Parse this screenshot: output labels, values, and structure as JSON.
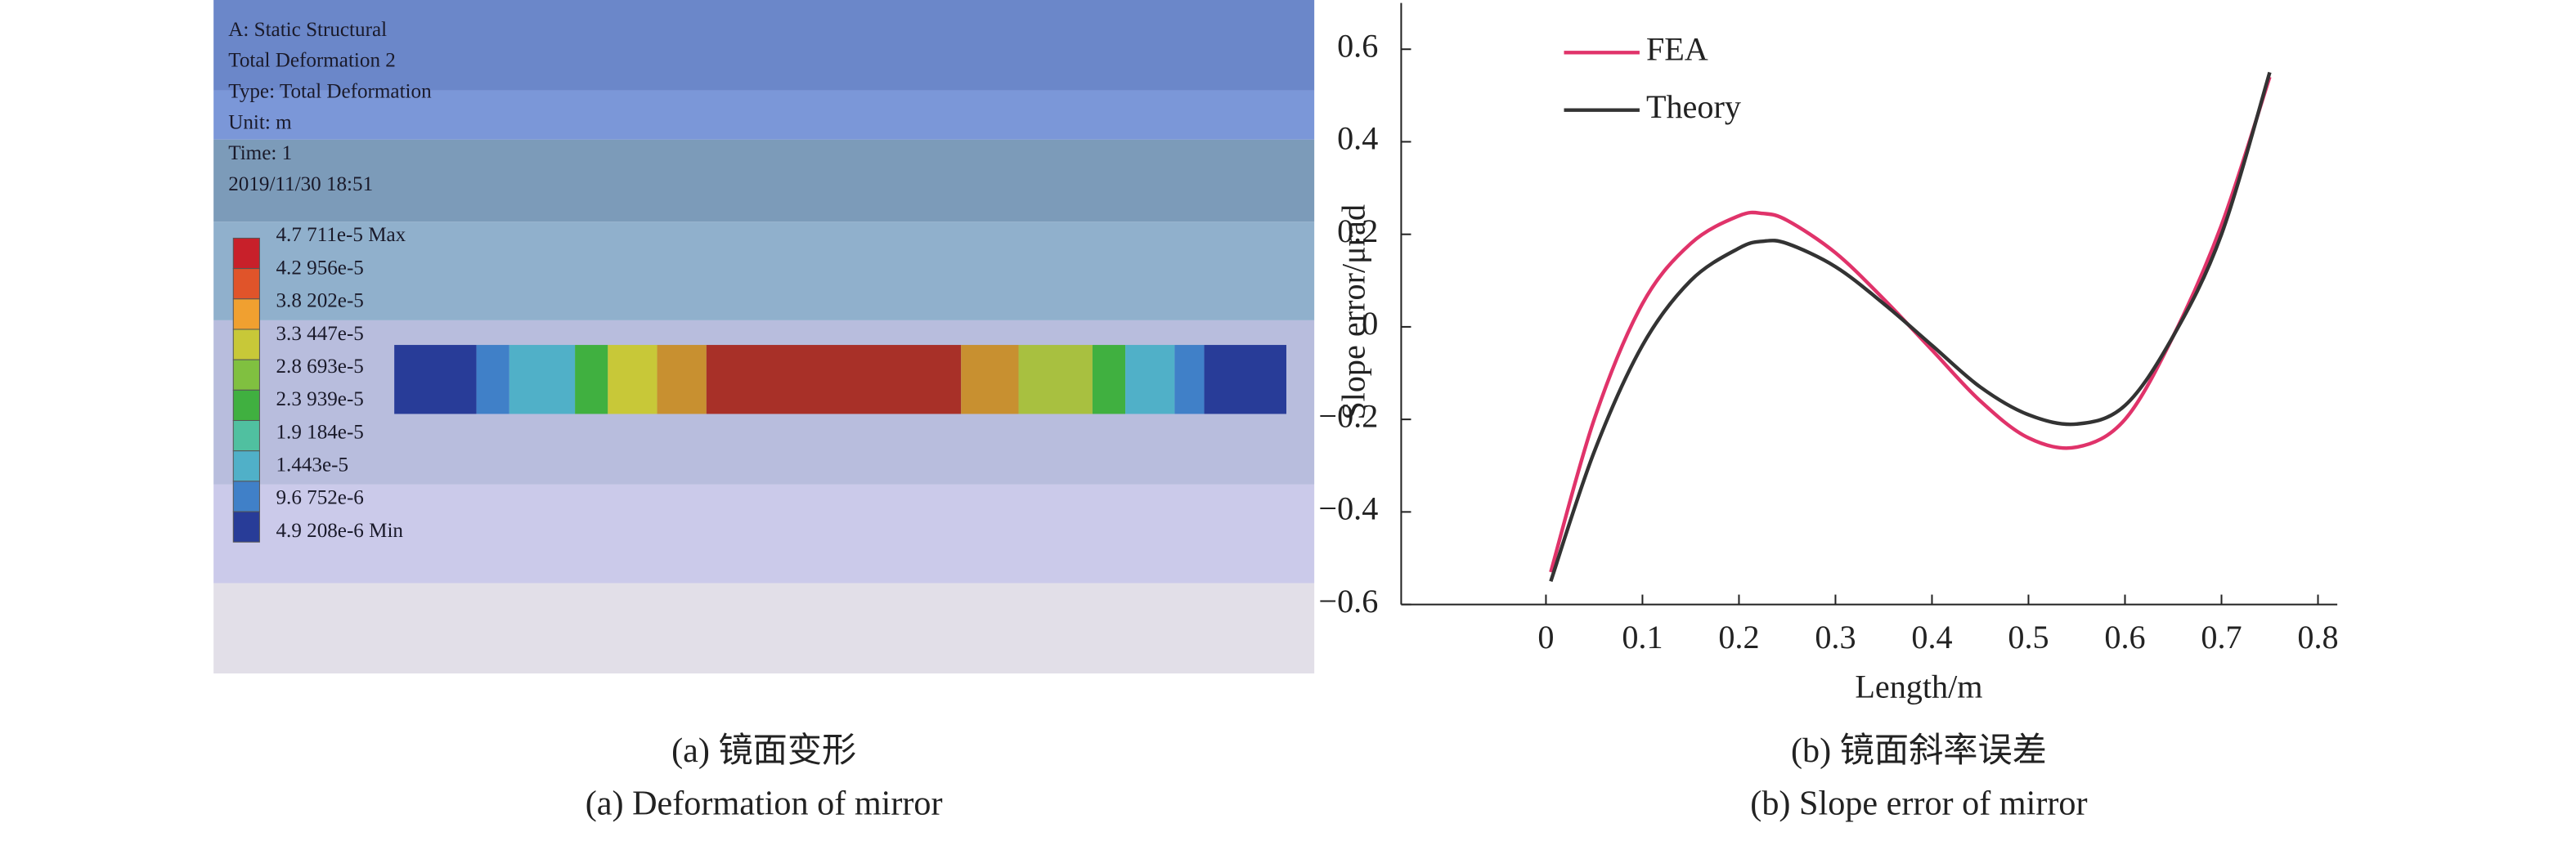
{
  "panel_a": {
    "header": [
      "A: Static Structural",
      "Total Deformation 2",
      "Type: Total Deformation",
      "Unit: m",
      "Time: 1",
      "2019/11/30 18:51"
    ],
    "legend_labels": [
      "4.7 711e-5 Max",
      "4.2 956e-5",
      "3.8 202e-5",
      "3.3 447e-5",
      "2.8 693e-5",
      "2.3 939e-5",
      "1.9 184e-5",
      "1.443e-5",
      "9.6 752e-6",
      "4.9 208e-6 Min"
    ],
    "legend_colors": [
      "#c8202a",
      "#e0542a",
      "#f0a030",
      "#c8c838",
      "#80c040",
      "#40b040",
      "#50c0a0",
      "#50b0c8",
      "#4080c8",
      "#283c98"
    ]
  },
  "chart_data": {
    "type": "line",
    "xlabel": "Length/m",
    "ylabel": "Slope error/μrad",
    "x": [
      0.005,
      0.05,
      0.1,
      0.15,
      0.2,
      0.225,
      0.25,
      0.3,
      0.35,
      0.4,
      0.45,
      0.5,
      0.55,
      0.6,
      0.65,
      0.7,
      0.75
    ],
    "series": [
      {
        "name": "FEA",
        "color": "#e0336a",
        "values": [
          -0.53,
          -0.2,
          0.05,
          0.18,
          0.24,
          0.245,
          0.23,
          0.16,
          0.06,
          -0.05,
          -0.16,
          -0.24,
          -0.26,
          -0.2,
          -0.02,
          0.22,
          0.54
        ]
      },
      {
        "name": "Theory",
        "color": "#333333",
        "values": [
          -0.55,
          -0.27,
          -0.04,
          0.1,
          0.17,
          0.185,
          0.18,
          0.13,
          0.05,
          -0.04,
          -0.13,
          -0.19,
          -0.21,
          -0.17,
          -0.02,
          0.2,
          0.55
        ]
      }
    ],
    "xlim": [
      -0.15,
      0.82
    ],
    "ylim": [
      -0.6,
      0.7
    ],
    "xticks": [
      0,
      0.1,
      0.2,
      0.3,
      0.4,
      0.5,
      0.6,
      0.7,
      0.8
    ],
    "yticks": [
      {
        "value": -0.6,
        "label": "−0.6"
      },
      {
        "value": -0.4,
        "label": "−0.4"
      },
      {
        "value": -0.2,
        "label": "−0.2"
      },
      0,
      0.2,
      0.4,
      0.6
    ],
    "legend": "upper left"
  },
  "captions": {
    "a_cn": "(a) 镜面变形",
    "a_en": "(a) Deformation of mirror",
    "b_cn": "(b) 镜面斜率误差",
    "b_en": "(b) Slope error of mirror"
  }
}
